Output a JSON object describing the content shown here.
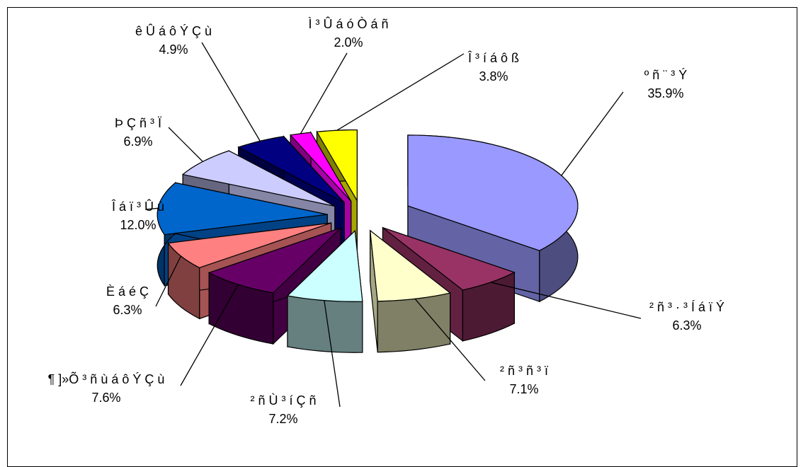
{
  "chart_data": {
    "type": "pie",
    "style": "3d-exploded",
    "title": "",
    "slices": [
      {
        "label": "º ñ ¨ ³ Ý",
        "value": 35.9,
        "value_label": "35.9%",
        "color": "#9999ff"
      },
      {
        "label": "² ñ ³ · ³ Í á ï Ý",
        "value": 6.3,
        "value_label": "6.3%",
        "color": "#993366"
      },
      {
        "label": "² ñ ³ ñ ³ ï",
        "value": 7.1,
        "value_label": "7.1%",
        "color": "#ffffcc"
      },
      {
        "label": "² ñ Ù ³ í Ç ñ",
        "value": 7.2,
        "value_label": "7.2%",
        "color": "#ccffff"
      },
      {
        "label": "¶ ]»Õ ³ ñ ù á ô Ý Ç ù",
        "value": 7.6,
        "value_label": "7.6%",
        "color": "#660066"
      },
      {
        "label": "È á é Ç",
        "value": 6.3,
        "value_label": "6.3%",
        "color": "#ff8080"
      },
      {
        "label": "Î á ï ³ Û ù",
        "value": 12.0,
        "value_label": "12.0%",
        "color": "#0066cc"
      },
      {
        "label": "Þ Ç ñ ³ Ï",
        "value": 6.9,
        "value_label": "6.9%",
        "color": "#ccccff"
      },
      {
        "label": "ê Û á ô Ý Ç ù",
        "value": 4.9,
        "value_label": "4.9%",
        "color": "#000080"
      },
      {
        "label": "Ì ³ Û á ó Ò á ñ",
        "value": 2.0,
        "value_label": "2.0%",
        "color": "#ff00ff"
      },
      {
        "label": "Î ³ í á ô ß",
        "value": 3.8,
        "value_label": "3.8%",
        "color": "#ffff00"
      }
    ],
    "legend": "none",
    "data_labels": "outside-with-leader-lines"
  }
}
